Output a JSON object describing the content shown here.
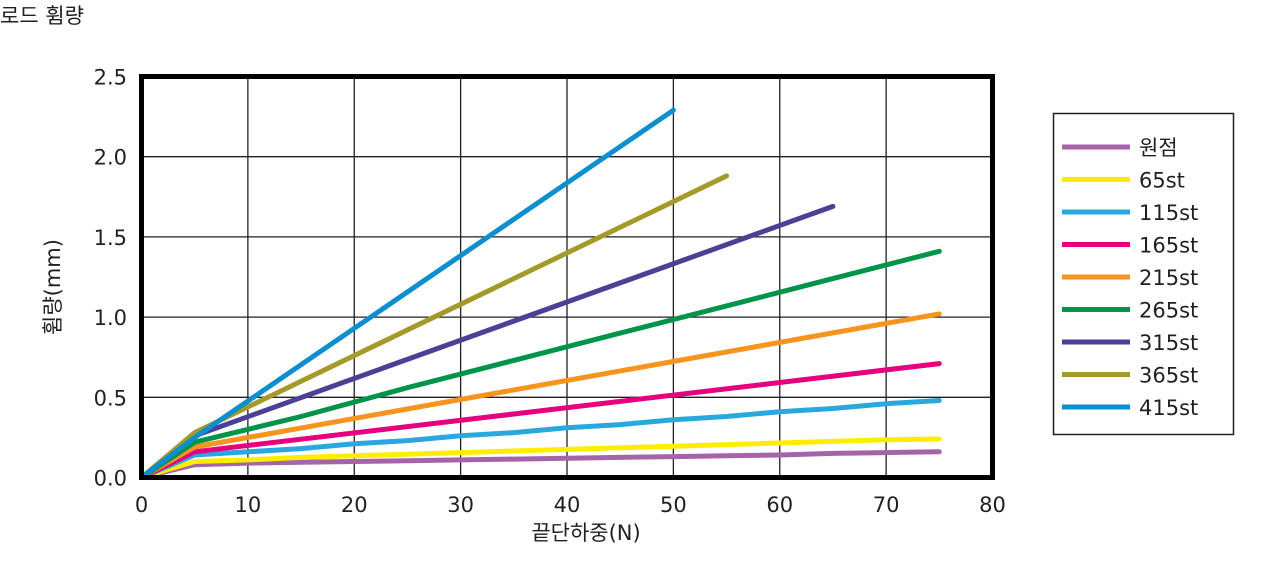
{
  "page_title": "로드 휨량",
  "chart_data": {
    "type": "line",
    "xlabel": "끝단하중(N)",
    "ylabel": "휨량(mm)",
    "xlim": [
      0,
      80
    ],
    "ylim": [
      0,
      2.5
    ],
    "x_ticks": [
      "0",
      "10",
      "20",
      "30",
      "40",
      "50",
      "60",
      "70",
      "80"
    ],
    "y_ticks": [
      "0.0",
      "0.5",
      "1.0",
      "1.5",
      "2.0",
      "2.5"
    ],
    "grid": true,
    "legend_position": "right",
    "series": [
      {
        "name": "원점",
        "color": "#a564a8",
        "x": [
          0,
          5,
          10,
          15,
          20,
          25,
          30,
          35,
          40,
          45,
          50,
          55,
          60,
          65,
          70,
          75
        ],
        "y": [
          0,
          0.08,
          0.09,
          0.095,
          0.1,
          0.105,
          0.11,
          0.115,
          0.12,
          0.125,
          0.13,
          0.135,
          0.14,
          0.15,
          0.155,
          0.16
        ]
      },
      {
        "name": "65st",
        "color": "#ffed00",
        "x": [
          0,
          5,
          10,
          15,
          20,
          25,
          30,
          35,
          40,
          45,
          50,
          55,
          60,
          65,
          70,
          75
        ],
        "y": [
          0,
          0.1,
          0.11,
          0.125,
          0.135,
          0.145,
          0.155,
          0.165,
          0.175,
          0.185,
          0.195,
          0.205,
          0.215,
          0.225,
          0.235,
          0.24
        ]
      },
      {
        "name": "115st",
        "color": "#29a7df",
        "x": [
          0,
          5,
          10,
          15,
          20,
          25,
          30,
          35,
          40,
          45,
          50,
          55,
          60,
          65,
          70,
          75
        ],
        "y": [
          0,
          0.14,
          0.16,
          0.18,
          0.21,
          0.23,
          0.26,
          0.28,
          0.31,
          0.33,
          0.36,
          0.38,
          0.41,
          0.43,
          0.46,
          0.48
        ]
      },
      {
        "name": "165st",
        "color": "#e5007f",
        "x": [
          0,
          5,
          75
        ],
        "y": [
          0,
          0.16,
          0.71
        ]
      },
      {
        "name": "215st",
        "color": "#f7941d",
        "x": [
          0,
          5,
          75
        ],
        "y": [
          0,
          0.19,
          1.02
        ]
      },
      {
        "name": "265st",
        "color": "#00934a",
        "x": [
          0,
          5,
          15,
          25,
          35,
          45,
          55,
          65,
          75
        ],
        "y": [
          0,
          0.22,
          0.38,
          0.56,
          0.73,
          0.9,
          1.07,
          1.24,
          1.41
        ]
      },
      {
        "name": "315st",
        "color": "#4c3f96",
        "x": [
          0,
          5,
          65
        ],
        "y": [
          0,
          0.26,
          1.69
        ]
      },
      {
        "name": "365st",
        "color": "#a39a2a",
        "x": [
          0,
          5,
          55
        ],
        "y": [
          0,
          0.28,
          1.88
        ]
      },
      {
        "name": "415st",
        "color": "#0d8fcf",
        "x": [
          0,
          5,
          50
        ],
        "y": [
          0,
          0.25,
          2.29
        ]
      }
    ]
  }
}
